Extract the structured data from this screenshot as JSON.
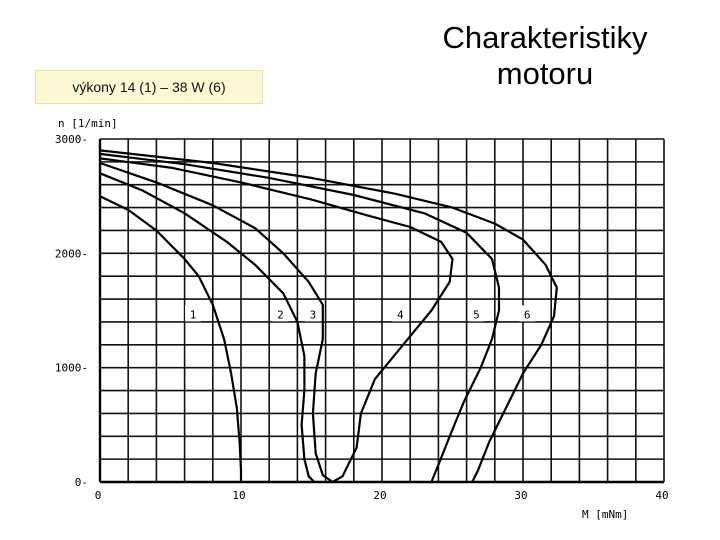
{
  "header": {
    "title_line1": "Charakteristiky",
    "title_line2": "motoru",
    "badge": "výkony 14 (1) – 38 W (6)"
  },
  "chart_data": {
    "type": "line",
    "ylabel": "n [1/min]",
    "xlabel": "M [mNm]",
    "xlim": [
      0,
      40
    ],
    "ylim": [
      0,
      3000
    ],
    "x_ticks": [
      0,
      10,
      20,
      30,
      40
    ],
    "y_ticks": [
      0,
      1000,
      2000,
      3000
    ],
    "grid": true,
    "series": [
      {
        "name": "1",
        "points": [
          [
            0,
            2500
          ],
          [
            2,
            2380
          ],
          [
            4,
            2200
          ],
          [
            6,
            1950
          ],
          [
            7,
            1800
          ],
          [
            8,
            1550
          ],
          [
            8.8,
            1250
          ],
          [
            9.3,
            950
          ],
          [
            9.7,
            650
          ],
          [
            9.9,
            350
          ],
          [
            10,
            100
          ],
          [
            10,
            0
          ]
        ]
      },
      {
        "name": "2",
        "points": [
          [
            0,
            2700
          ],
          [
            3,
            2550
          ],
          [
            6,
            2350
          ],
          [
            9,
            2100
          ],
          [
            11,
            1900
          ],
          [
            13,
            1650
          ],
          [
            14,
            1400
          ],
          [
            14.5,
            1100
          ],
          [
            14.5,
            800
          ],
          [
            14.3,
            500
          ],
          [
            14.5,
            200
          ],
          [
            14.8,
            50
          ],
          [
            15.2,
            0
          ]
        ]
      },
      {
        "name": "3",
        "points": [
          [
            0,
            2790
          ],
          [
            4,
            2620
          ],
          [
            8,
            2420
          ],
          [
            11,
            2220
          ],
          [
            13,
            2000
          ],
          [
            14.8,
            1750
          ],
          [
            15.8,
            1550
          ],
          [
            15.8,
            1250
          ],
          [
            15.3,
            950
          ],
          [
            15.1,
            600
          ],
          [
            15.3,
            250
          ],
          [
            15.8,
            60
          ],
          [
            16.5,
            0
          ]
        ]
      },
      {
        "name": "4",
        "points": [
          [
            0,
            2830
          ],
          [
            5,
            2750
          ],
          [
            10,
            2620
          ],
          [
            15,
            2470
          ],
          [
            19,
            2330
          ],
          [
            22,
            2230
          ],
          [
            24.2,
            2100
          ],
          [
            25,
            1950
          ],
          [
            24.8,
            1750
          ],
          [
            23.5,
            1500
          ],
          [
            21.5,
            1200
          ],
          [
            19.5,
            900
          ],
          [
            18.5,
            600
          ],
          [
            18.2,
            300
          ],
          [
            17.2,
            50
          ],
          [
            16.5,
            0
          ]
        ]
      },
      {
        "name": "5",
        "points": [
          [
            0,
            2870
          ],
          [
            6,
            2780
          ],
          [
            12,
            2660
          ],
          [
            18,
            2510
          ],
          [
            23,
            2350
          ],
          [
            26,
            2180
          ],
          [
            27.8,
            1950
          ],
          [
            28.3,
            1700
          ],
          [
            28.3,
            1500
          ],
          [
            27.8,
            1250
          ],
          [
            27,
            1000
          ],
          [
            25.8,
            700
          ],
          [
            24.8,
            400
          ],
          [
            24,
            150
          ],
          [
            23.5,
            0
          ]
        ]
      },
      {
        "name": "6",
        "points": [
          [
            0,
            2900
          ],
          [
            8,
            2790
          ],
          [
            15,
            2660
          ],
          [
            21,
            2520
          ],
          [
            25,
            2400
          ],
          [
            28,
            2260
          ],
          [
            30,
            2120
          ],
          [
            31.6,
            1900
          ],
          [
            32.4,
            1700
          ],
          [
            32.2,
            1450
          ],
          [
            31.3,
            1200
          ],
          [
            30,
            950
          ],
          [
            28.8,
            650
          ],
          [
            27.6,
            350
          ],
          [
            26.8,
            100
          ],
          [
            26.4,
            0
          ]
        ]
      }
    ],
    "labels": [
      {
        "text": "1",
        "x": 6.6,
        "y": 1440
      },
      {
        "text": "2",
        "x": 12.8,
        "y": 1440
      },
      {
        "text": "3",
        "x": 15.1,
        "y": 1440
      },
      {
        "text": "4",
        "x": 21.3,
        "y": 1440
      },
      {
        "text": "5",
        "x": 26.7,
        "y": 1440
      },
      {
        "text": "6",
        "x": 30.3,
        "y": 1440
      }
    ]
  }
}
